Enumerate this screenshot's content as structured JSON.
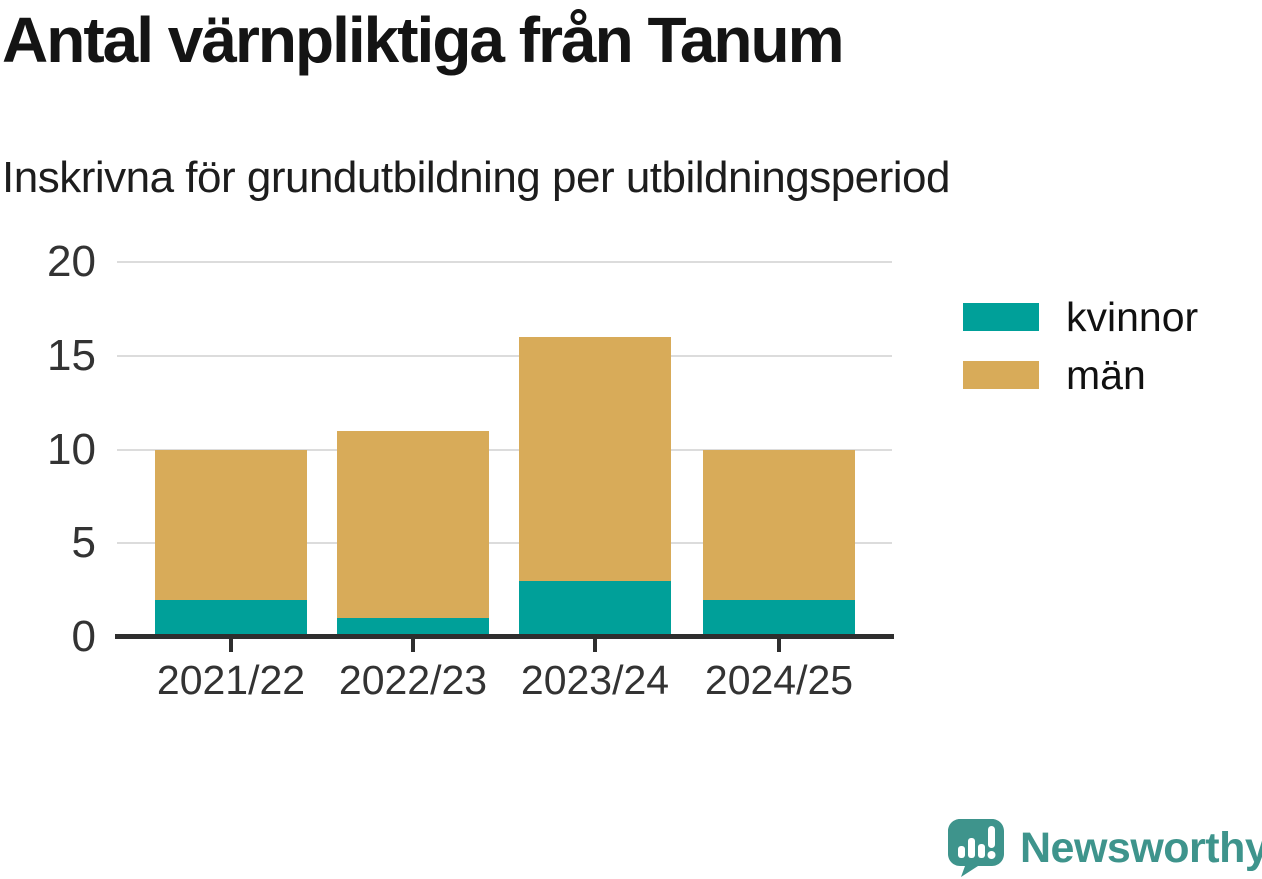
{
  "header": {
    "title": "Antal värnpliktiga från Tanum",
    "subtitle": "Inskrivna för grundutbildning per utbildningsperiod"
  },
  "chart_data": {
    "type": "bar",
    "stacked": true,
    "categories": [
      "2021/22",
      "2022/23",
      "2023/24",
      "2024/25"
    ],
    "series": [
      {
        "name": "kvinnor",
        "color": "#00a099",
        "values": [
          2,
          1,
          3,
          2
        ]
      },
      {
        "name": "män",
        "color": "#d8ab59",
        "values": [
          8,
          10,
          13,
          8
        ]
      }
    ],
    "totals": [
      10,
      11,
      16,
      10
    ],
    "title": "Antal värnpliktiga från Tanum",
    "subtitle": "Inskrivna för grundutbildning per utbildningsperiod",
    "xlabel": "",
    "ylabel": "",
    "ylim": [
      0,
      20
    ],
    "yticks": [
      0,
      5,
      10,
      15,
      20
    ],
    "grid": "horizontal",
    "legend_position": "right",
    "style": {
      "grid_color": "#dcdcdc",
      "axis_color": "#2e2e2e",
      "tick_label_color": "#333333",
      "background": "#ffffff"
    }
  },
  "branding": {
    "logo_text": "Newsworthy",
    "logo_color": "#3e948c",
    "logo_icon": "speech-bubble-bar-chart-exclamation"
  }
}
